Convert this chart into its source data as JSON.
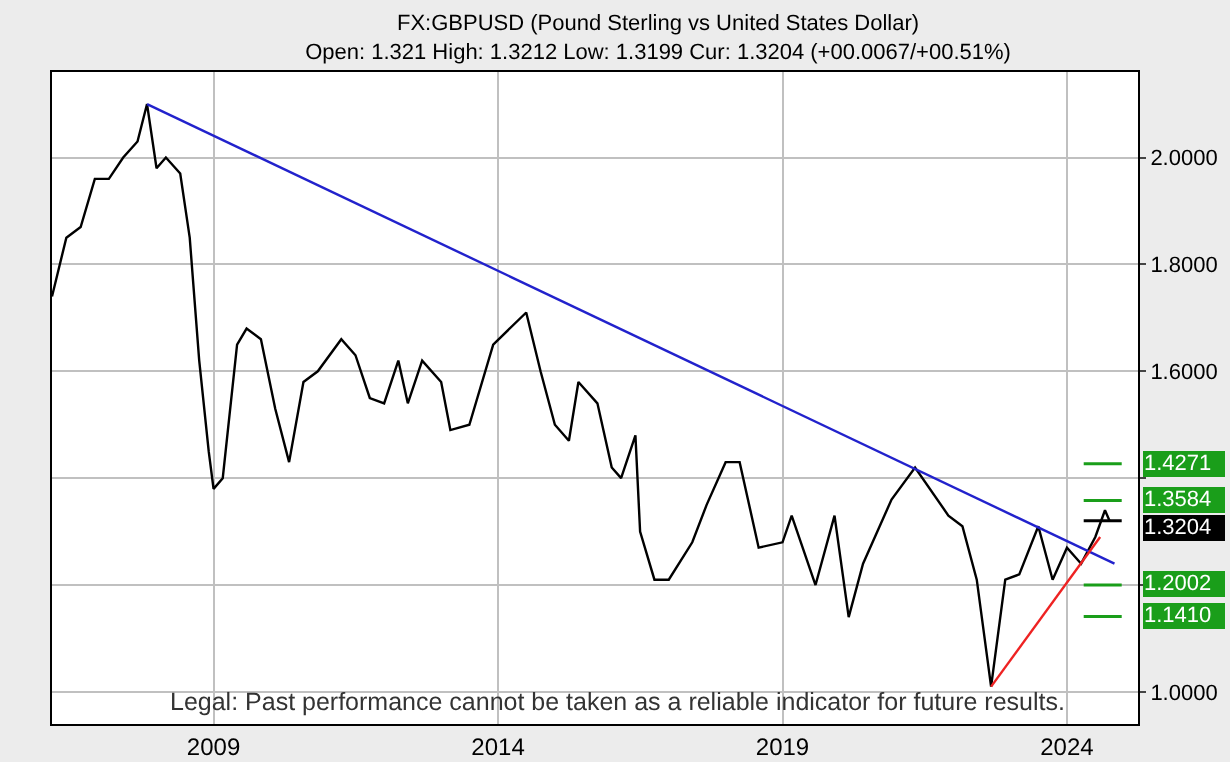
{
  "chart_data": {
    "type": "line",
    "title": "FX:GBPUSD (Pound Sterling vs United States Dollar)",
    "subtitle": "Open: 1.321 High: 1.3212 Low: 1.3199 Cur: 1.3204 (+00.0067/+00.51%)",
    "annotations": [
      "Legal: Past performance cannot be taken as a reliable indicator for future results."
    ],
    "series": [
      {
        "color": "#000000",
        "x": [
          "2006-03",
          "2006-06",
          "2006-09",
          "2006-12",
          "2007-03",
          "2007-06",
          "2007-09",
          "2007-11",
          "2008-01",
          "2008-03",
          "2008-06",
          "2008-08",
          "2008-10",
          "2008-12",
          "2009-01",
          "2009-03",
          "2009-06",
          "2009-08",
          "2009-11",
          "2010-02",
          "2010-05",
          "2010-08",
          "2010-11",
          "2011-04",
          "2011-07",
          "2011-10",
          "2012-01",
          "2012-04",
          "2012-06",
          "2012-09",
          "2013-01",
          "2013-03",
          "2013-07",
          "2013-12",
          "2014-07",
          "2014-10",
          "2015-01",
          "2015-04",
          "2015-06",
          "2015-10",
          "2016-01",
          "2016-03",
          "2016-06",
          "2016-07",
          "2016-10",
          "2017-01",
          "2017-06",
          "2017-09",
          "2018-01",
          "2018-04",
          "2018-08",
          "2019-01",
          "2019-03",
          "2019-08",
          "2019-12",
          "2020-03",
          "2020-06",
          "2020-12",
          "2021-05",
          "2021-12",
          "2022-03",
          "2022-06",
          "2022-09",
          "2022-12",
          "2023-03",
          "2023-07",
          "2023-10",
          "2024-01",
          "2024-04",
          "2024-07",
          "2024-09",
          "2024-10"
        ],
        "values": [
          1.74,
          1.85,
          1.87,
          1.96,
          1.96,
          2.0,
          2.03,
          2.1,
          1.98,
          2.0,
          1.97,
          1.85,
          1.62,
          1.45,
          1.38,
          1.4,
          1.65,
          1.68,
          1.66,
          1.53,
          1.43,
          1.58,
          1.6,
          1.66,
          1.63,
          1.55,
          1.54,
          1.62,
          1.54,
          1.62,
          1.58,
          1.49,
          1.5,
          1.65,
          1.71,
          1.6,
          1.5,
          1.47,
          1.58,
          1.54,
          1.42,
          1.4,
          1.48,
          1.3,
          1.21,
          1.21,
          1.28,
          1.35,
          1.43,
          1.43,
          1.27,
          1.28,
          1.33,
          1.2,
          1.33,
          1.14,
          1.24,
          1.36,
          1.42,
          1.33,
          1.31,
          1.21,
          1.01,
          1.21,
          1.22,
          1.31,
          1.21,
          1.27,
          1.24,
          1.29,
          1.34,
          1.32
        ]
      },
      {
        "color": "#2222cc",
        "x": [
          "2007-11",
          "2024-11"
        ],
        "values": [
          2.1,
          1.24
        ]
      },
      {
        "color": "#ee2222",
        "x": [
          "2022-09",
          "2024-08"
        ],
        "values": [
          1.01,
          1.29
        ]
      }
    ],
    "ref_lines": [
      {
        "axis": "y",
        "value": 1.4271,
        "label": "1.4271",
        "color": "#1a9e1a"
      },
      {
        "axis": "y",
        "value": 1.3584,
        "label": "1.3584",
        "color": "#1a9e1a"
      },
      {
        "axis": "y",
        "value": 1.3204,
        "label": "1.3204",
        "color": "#000000"
      },
      {
        "axis": "y",
        "value": 1.2002,
        "label": "1.2002",
        "color": "#1a9e1a"
      },
      {
        "axis": "y",
        "value": 1.141,
        "label": "1.1410",
        "color": "#1a9e1a"
      }
    ],
    "xlim": [
      "2006-03",
      "2025-04"
    ],
    "xticks": [
      {
        "value": "2009-01",
        "label": "2009"
      },
      {
        "value": "2014-01",
        "label": "2014"
      },
      {
        "value": "2019-01",
        "label": "2019"
      },
      {
        "value": "2024-01",
        "label": "2024"
      }
    ],
    "ylim": [
      0.94,
      2.16
    ],
    "yticks": [
      {
        "value": 1,
        "label": "1.0000"
      },
      {
        "value": 1.2,
        "label": null
      },
      {
        "value": 1.4,
        "label": null
      },
      {
        "value": 1.6,
        "label": "1.6000"
      },
      {
        "value": 1.8,
        "label": "1.8000"
      },
      {
        "value": 2,
        "label": "2.0000"
      }
    ],
    "grid": true
  }
}
